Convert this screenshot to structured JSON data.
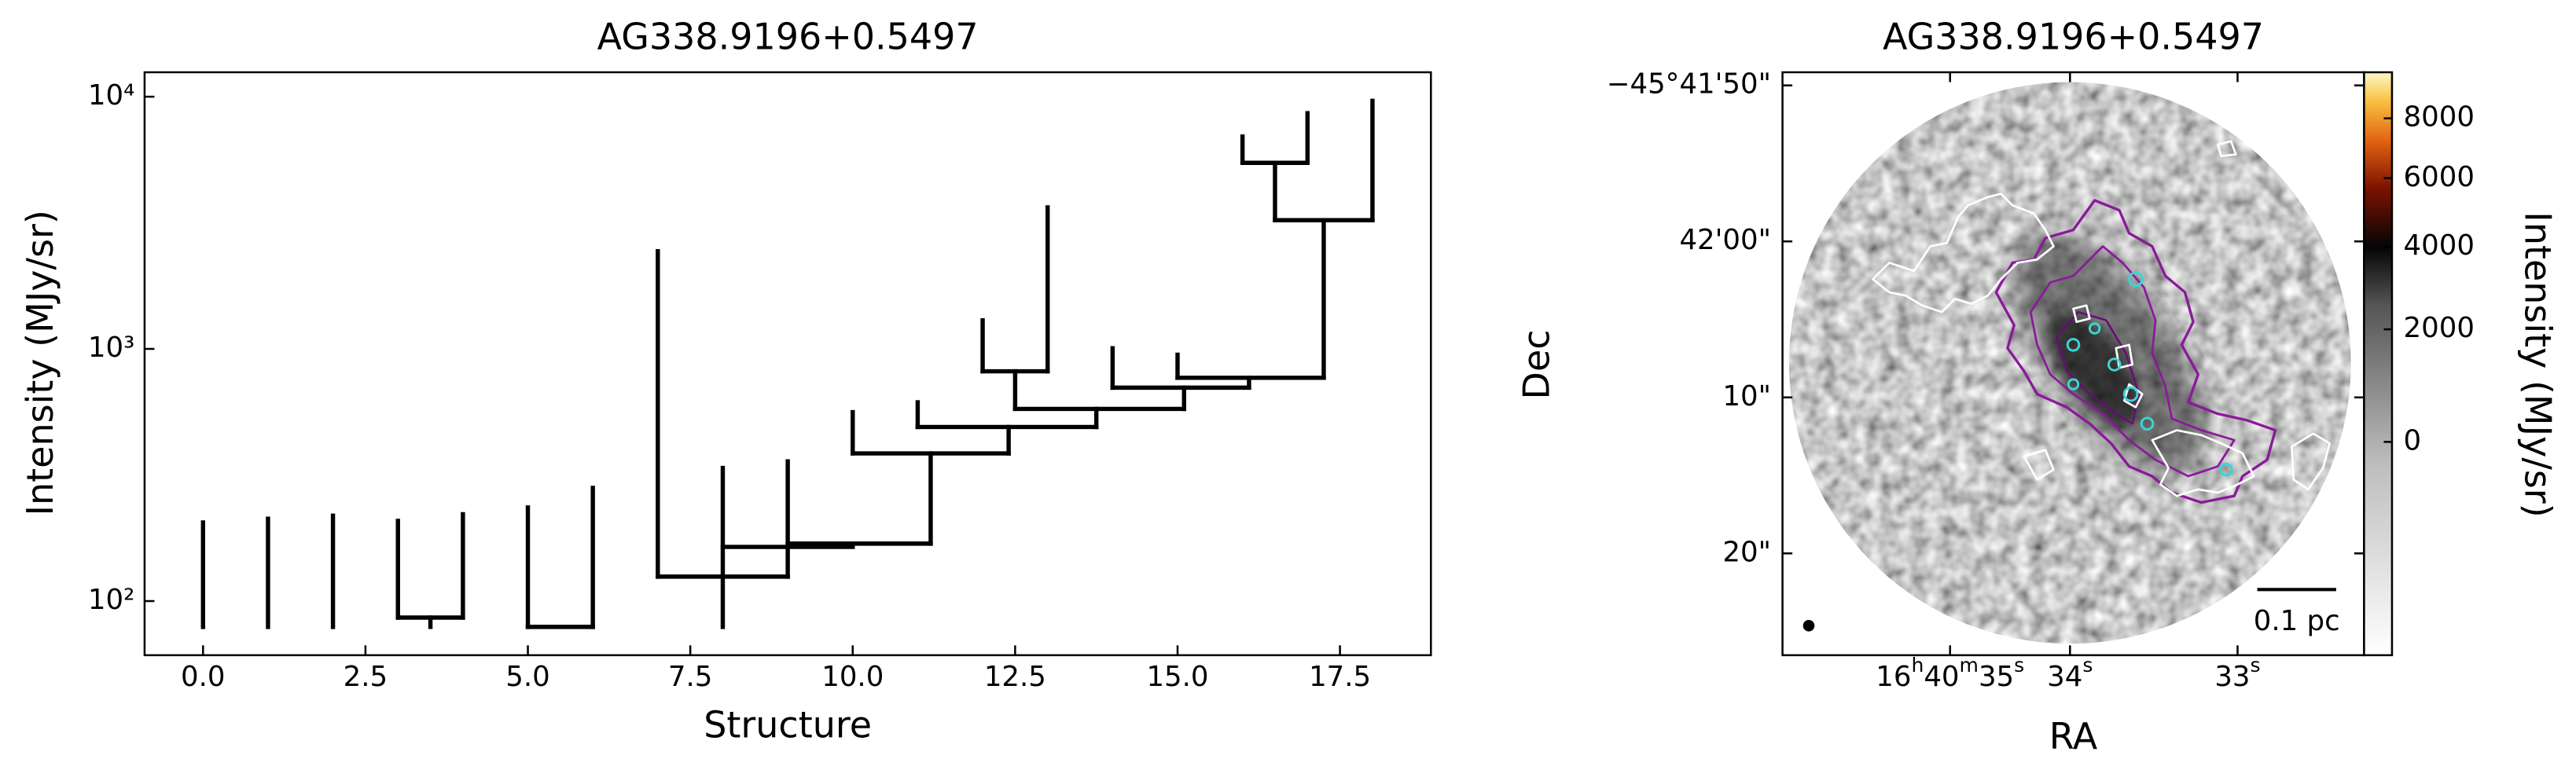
{
  "chart_data": [
    {
      "type": "dendrogram",
      "title": "AG338.9196+0.5497",
      "xlabel": "Structure",
      "ylabel": "Intensity (MJy/sr)",
      "log_y": true,
      "color": "#000000",
      "xlim": [
        -0.9,
        18.9
      ],
      "ylim": [
        61,
        12500
      ],
      "xticks": [
        {
          "value": 0,
          "label": "0.0"
        },
        {
          "value": 2.5,
          "label": "2.5"
        },
        {
          "value": 5,
          "label": "5.0"
        },
        {
          "value": 7.5,
          "label": "7.5"
        },
        {
          "value": 10,
          "label": "10.0"
        },
        {
          "value": 12.5,
          "label": "12.5"
        },
        {
          "value": 15,
          "label": "15.0"
        },
        {
          "value": 17.5,
          "label": "17.5"
        }
      ],
      "yticks": [
        {
          "value": 100,
          "label": "10²"
        },
        {
          "value": 1000,
          "label": "10³"
        },
        {
          "value": 10000,
          "label": "10⁴"
        }
      ],
      "verticals": [
        {
          "x": 0,
          "y": [
            79,
            205
          ]
        },
        {
          "x": 1,
          "y": [
            79,
            212
          ]
        },
        {
          "x": 2,
          "y": [
            79,
            218
          ]
        },
        {
          "x": 3,
          "y": [
            86,
            208
          ]
        },
        {
          "x": 4,
          "y": [
            86,
            221
          ]
        },
        {
          "x": 3.5,
          "y": [
            79,
            86
          ]
        },
        {
          "x": 5,
          "y": [
            79,
            235
          ]
        },
        {
          "x": 6,
          "y": [
            79,
            281
          ]
        },
        {
          "x": 7,
          "y": [
            125,
            2440
          ]
        },
        {
          "x": 8,
          "y": [
            79,
            337
          ]
        },
        {
          "x": 9,
          "y": [
            125,
            358
          ]
        },
        {
          "x": 10,
          "y": [
            385,
            561
          ]
        },
        {
          "x": 11.2,
          "y": [
            169,
            385
          ]
        },
        {
          "x": 11,
          "y": [
            490,
            614
          ]
        },
        {
          "x": 12.4,
          "y": [
            385,
            490
          ]
        },
        {
          "x": 13.75,
          "y": [
            490,
            578
          ]
        },
        {
          "x": 12,
          "y": [
            815,
            1298
          ]
        },
        {
          "x": 13,
          "y": [
            815,
            3638
          ]
        },
        {
          "x": 12.5,
          "y": [
            578,
            815
          ]
        },
        {
          "x": 14,
          "y": [
            702,
            1006
          ]
        },
        {
          "x": 15,
          "y": [
            768,
            948
          ]
        },
        {
          "x": 15.1,
          "y": [
            578,
            702
          ]
        },
        {
          "x": 16.1,
          "y": [
            702,
            768
          ]
        },
        {
          "x": 17.25,
          "y": [
            768,
            3238
          ]
        },
        {
          "x": 16,
          "y": [
            5467,
            6950
          ]
        },
        {
          "x": 17,
          "y": [
            5467,
            8600
          ]
        },
        {
          "x": 16.5,
          "y": [
            3238,
            5467
          ]
        },
        {
          "x": 18,
          "y": [
            3238,
            9630
          ]
        }
      ],
      "horizontals": [
        {
          "x": [
            3,
            4
          ],
          "y": 86
        },
        {
          "x": [
            5,
            6
          ],
          "y": 79
        },
        {
          "x": [
            7,
            9
          ],
          "y": 125
        },
        {
          "x": [
            8,
            10
          ],
          "y": 164
        },
        {
          "x": [
            9,
            11.2
          ],
          "y": 169
        },
        {
          "x": [
            10,
            12.4
          ],
          "y": 385
        },
        {
          "x": [
            11,
            13.75
          ],
          "y": 490
        },
        {
          "x": [
            12.5,
            15.1
          ],
          "y": 578
        },
        {
          "x": [
            14,
            16.1
          ],
          "y": 702
        },
        {
          "x": [
            15,
            17.25
          ],
          "y": 768
        },
        {
          "x": [
            12,
            13
          ],
          "y": 815
        },
        {
          "x": [
            16,
            17
          ],
          "y": 5467
        },
        {
          "x": [
            16.5,
            18
          ],
          "y": 3238
        }
      ]
    },
    {
      "type": "image",
      "title": "AG338.9196+0.5497",
      "xlabel": "RA",
      "ylabel": "Dec",
      "ra_ticks": [
        [
          "16",
          "h",
          "40",
          "m",
          "35",
          "s"
        ],
        [
          "34",
          "s"
        ],
        [
          "33",
          "s"
        ]
      ],
      "dec_ticks": [
        "−45°41'50\"",
        "42'00\"",
        "10\"",
        "20\""
      ],
      "colorbar": {
        "label": "Intensity (MJy/sr)",
        "lim": [
          -1500,
          9700
        ],
        "stretch": "sqrt",
        "ticks": [
          0,
          2000,
          4000,
          6000,
          8000
        ]
      },
      "scalebar": "0.1 pc"
    }
  ]
}
